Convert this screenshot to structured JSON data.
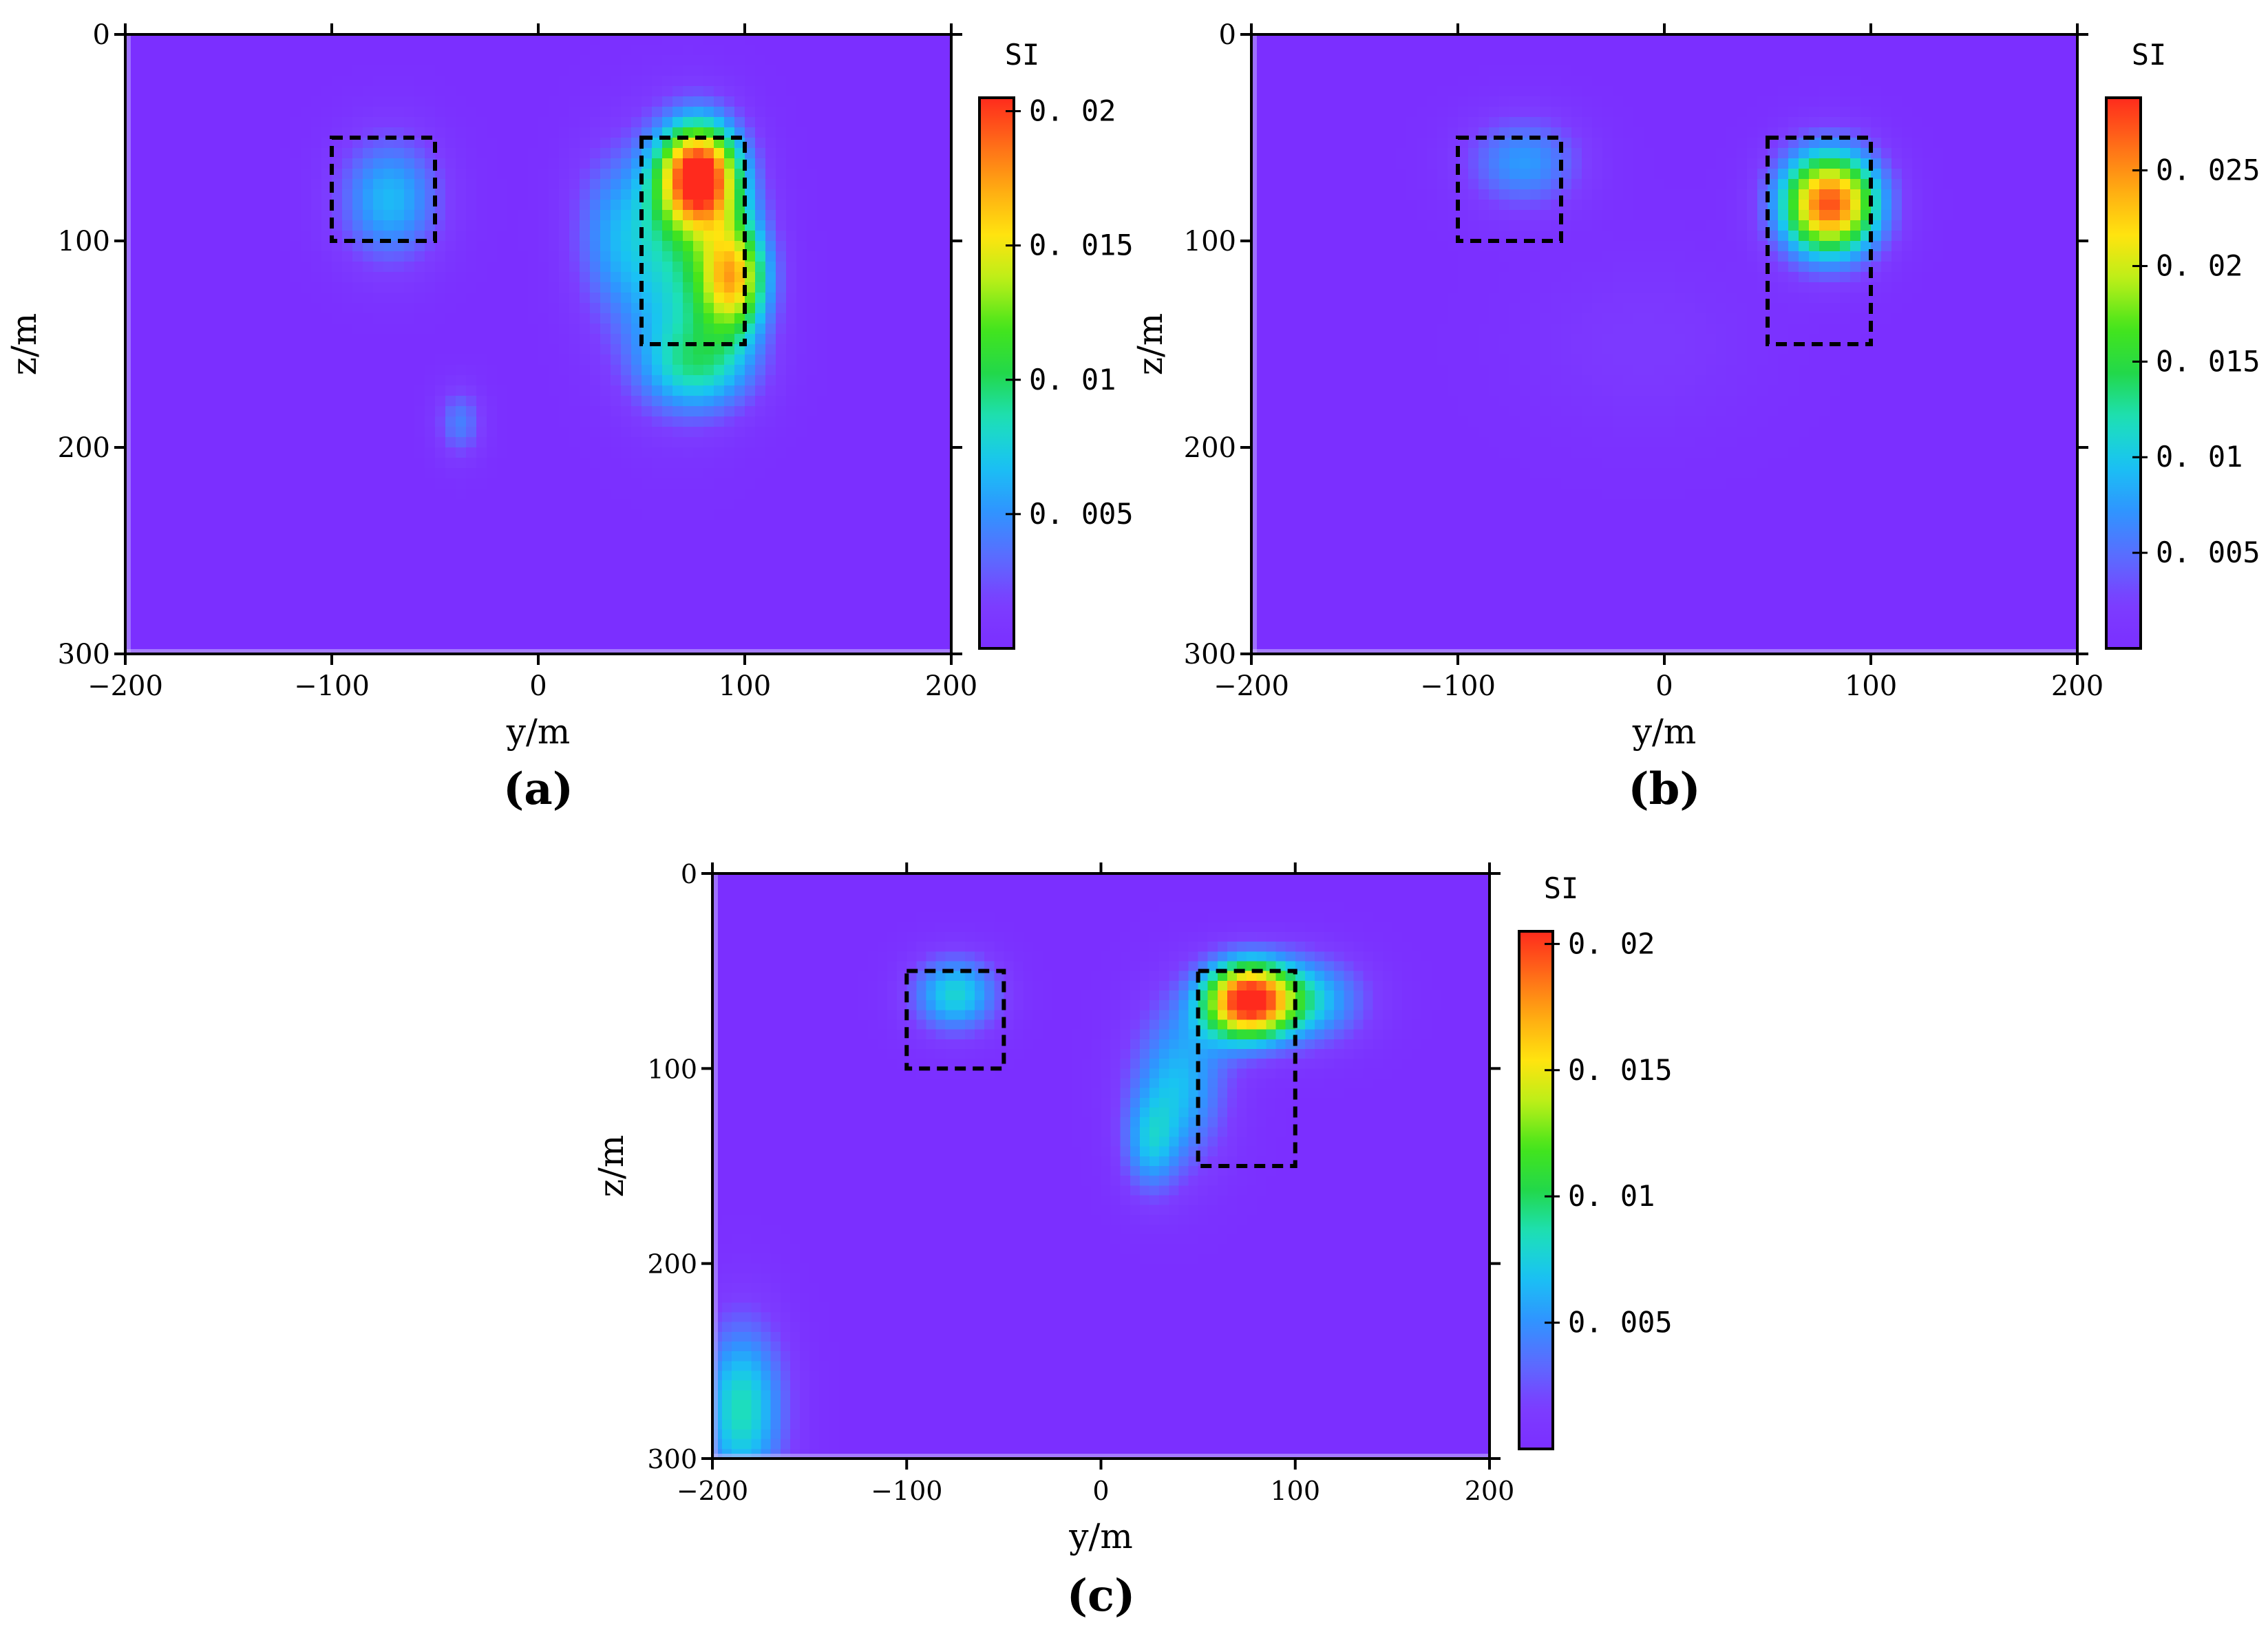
{
  "figure": {
    "panels": [
      {
        "id": "a",
        "caption": "(a)"
      },
      {
        "id": "b",
        "caption": "(b)"
      },
      {
        "id": "c",
        "caption": "(c)"
      }
    ]
  },
  "colormap": [
    "#7b2fff",
    "#7c3dff",
    "#5a6cff",
    "#2f95ff",
    "#19c3f3",
    "#1de0b8",
    "#22d84a",
    "#45e51a",
    "#b8ef19",
    "#ffe40f",
    "#ffab12",
    "#ff6b18",
    "#ff2a1d"
  ],
  "chart_data": [
    {
      "type": "heatmap",
      "panel": "a",
      "caption": "(a)",
      "xlabel": "y/m",
      "ylabel": "z/m",
      "colorbar_title": "SI",
      "xlim": [
        -200,
        200
      ],
      "ylim": [
        0,
        300
      ],
      "y_inverted": true,
      "xticks": [
        -200,
        -100,
        0,
        100,
        200
      ],
      "xtick_labels": [
        "−200",
        "−100",
        "0",
        "100",
        "200"
      ],
      "yticks": [
        0,
        100,
        200,
        300
      ],
      "ytick_labels": [
        "0",
        "100",
        "200",
        "300"
      ],
      "clim": [
        0,
        0.0205
      ],
      "cticks": [
        0.005,
        0.01,
        0.015,
        0.02
      ],
      "ctick_labels": [
        "0. 005",
        "0. 01",
        "0. 015",
        "0. 02"
      ],
      "background_value": 0,
      "anomalies": [
        {
          "y": -72,
          "z": 80,
          "sy": 18,
          "sz": 22,
          "amp": 0.0065
        },
        {
          "y": 78,
          "z": 68,
          "sy": 14,
          "sz": 18,
          "amp": 0.0195
        },
        {
          "y": 95,
          "z": 118,
          "sy": 12,
          "sz": 20,
          "amp": 0.0135
        },
        {
          "y": 68,
          "z": 112,
          "sy": 22,
          "sz": 40,
          "amp": 0.0075
        },
        {
          "y": 78,
          "z": 162,
          "sy": 20,
          "sz": 16,
          "amp": 0.006
        },
        {
          "y": 35,
          "z": 95,
          "sy": 14,
          "sz": 28,
          "amp": 0.0038
        },
        {
          "y": -38,
          "z": 188,
          "sy": 8,
          "sz": 12,
          "amp": 0.0042
        }
      ],
      "model_boxes": [
        {
          "y0": -100,
          "y1": -50,
          "z0": 50,
          "z1": 100
        },
        {
          "y0": 50,
          "y1": 100,
          "z0": 50,
          "z1": 150
        }
      ]
    },
    {
      "type": "heatmap",
      "panel": "b",
      "caption": "(b)",
      "xlabel": "y/m",
      "ylabel": "z/m",
      "colorbar_title": "SI",
      "xlim": [
        -200,
        200
      ],
      "ylim": [
        0,
        300
      ],
      "y_inverted": true,
      "xticks": [
        -200,
        -100,
        0,
        100,
        200
      ],
      "xtick_labels": [
        "−200",
        "−100",
        "0",
        "100",
        "200"
      ],
      "yticks": [
        0,
        100,
        200,
        300
      ],
      "ytick_labels": [
        "0",
        "100",
        "200",
        "300"
      ],
      "clim": [
        0,
        0.0288
      ],
      "cticks": [
        0.005,
        0.01,
        0.015,
        0.02,
        0.025
      ],
      "ctick_labels": [
        "0. 005",
        "0. 01",
        "0. 015",
        "0. 02",
        "0. 025"
      ],
      "background_value": 0,
      "anomalies": [
        {
          "y": -68,
          "z": 62,
          "sy": 20,
          "sz": 16,
          "amp": 0.0075
        },
        {
          "y": 80,
          "z": 82,
          "sy": 17,
          "sz": 18,
          "amp": 0.0275
        },
        {
          "y": -10,
          "z": 150,
          "sy": 40,
          "sz": 30,
          "amp": 0.0018
        }
      ],
      "model_boxes": [
        {
          "y0": -100,
          "y1": -50,
          "z0": 50,
          "z1": 100
        },
        {
          "y0": 50,
          "y1": 100,
          "z0": 50,
          "z1": 150
        }
      ]
    },
    {
      "type": "heatmap",
      "panel": "c",
      "caption": "(c)",
      "xlabel": "y/m",
      "ylabel": "z/m",
      "colorbar_title": "SI",
      "xlim": [
        -200,
        200
      ],
      "ylim": [
        0,
        300
      ],
      "y_inverted": true,
      "xticks": [
        -200,
        -100,
        0,
        100,
        200
      ],
      "xtick_labels": [
        "−200",
        "−100",
        "0",
        "100",
        "200"
      ],
      "yticks": [
        0,
        100,
        200,
        300
      ],
      "ytick_labels": [
        "0",
        "100",
        "200",
        "300"
      ],
      "clim": [
        0,
        0.0205
      ],
      "cticks": [
        0.005,
        0.01,
        0.015,
        0.02
      ],
      "ctick_labels": [
        "0. 005",
        "0. 01",
        "0. 015",
        "0. 02"
      ],
      "background_value": 0,
      "anomalies": [
        {
          "y": -75,
          "z": 62,
          "sy": 16,
          "sz": 14,
          "amp": 0.0078
        },
        {
          "y": 75,
          "z": 65,
          "sy": 16,
          "sz": 14,
          "amp": 0.0195
        },
        {
          "y": 105,
          "z": 65,
          "sy": 22,
          "sz": 16,
          "amp": 0.007
        },
        {
          "y": 40,
          "z": 108,
          "sy": 18,
          "sz": 30,
          "amp": 0.0065
        },
        {
          "y": 25,
          "z": 140,
          "sy": 10,
          "sz": 18,
          "amp": 0.0048
        },
        {
          "y": -185,
          "z": 275,
          "sy": 16,
          "sz": 32,
          "amp": 0.0085
        }
      ],
      "model_boxes": [
        {
          "y0": -100,
          "y1": -50,
          "z0": 50,
          "z1": 100
        },
        {
          "y0": 50,
          "y1": 100,
          "z0": 50,
          "z1": 150
        }
      ]
    }
  ]
}
